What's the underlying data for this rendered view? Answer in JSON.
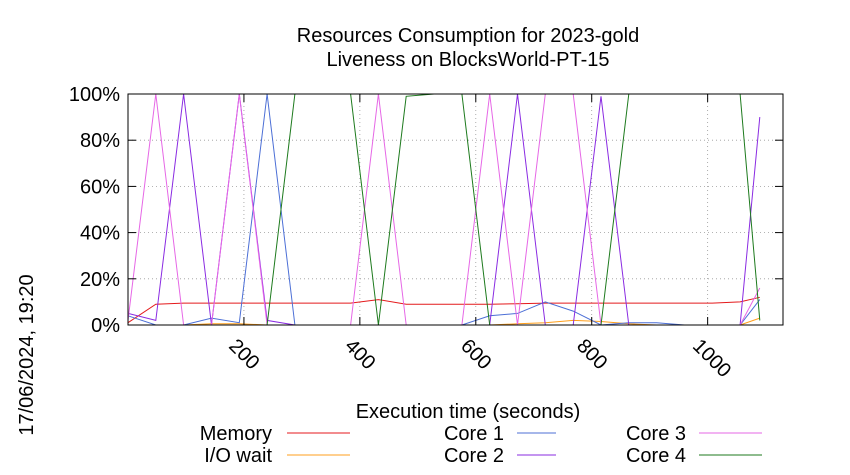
{
  "chart_data": {
    "type": "line",
    "title": "Resources Consumption for 2023-gold",
    "subtitle": "Liveness on BlocksWorld-PT-15",
    "xlabel": "Execution time (seconds)",
    "ylabel": "",
    "timestamp": "17/06/2024, 19:20",
    "xlim": [
      0,
      1130
    ],
    "ylim": [
      0,
      100
    ],
    "x_ticks": [
      200,
      400,
      600,
      800,
      1000
    ],
    "y_ticks": [
      0,
      20,
      40,
      60,
      80,
      100
    ],
    "y_tick_suffix": "%",
    "grid": true,
    "legend_position": "bottom",
    "series": [
      {
        "name": "Memory",
        "color": "#e41a1c",
        "points": [
          [
            0,
            1
          ],
          [
            48,
            9
          ],
          [
            96,
            9.5
          ],
          [
            144,
            9.5
          ],
          [
            192,
            9.5
          ],
          [
            240,
            9.5
          ],
          [
            288,
            9.5
          ],
          [
            336,
            9.5
          ],
          [
            384,
            9.5
          ],
          [
            432,
            11
          ],
          [
            480,
            9
          ],
          [
            528,
            9
          ],
          [
            576,
            9
          ],
          [
            624,
            9
          ],
          [
            672,
            9.2
          ],
          [
            720,
            9.5
          ],
          [
            768,
            9.5
          ],
          [
            816,
            9.5
          ],
          [
            864,
            9.5
          ],
          [
            912,
            9.5
          ],
          [
            960,
            9.5
          ],
          [
            1008,
            9.5
          ],
          [
            1056,
            10
          ],
          [
            1090,
            12
          ]
        ]
      },
      {
        "name": "I/O wait",
        "color": "#ff9f1c",
        "points": [
          [
            0,
            0
          ],
          [
            48,
            0
          ],
          [
            96,
            0
          ],
          [
            144,
            0.5
          ],
          [
            192,
            0.5
          ],
          [
            240,
            0
          ],
          [
            288,
            0
          ],
          [
            336,
            0
          ],
          [
            384,
            0
          ],
          [
            432,
            0
          ],
          [
            480,
            0
          ],
          [
            528,
            0
          ],
          [
            576,
            0
          ],
          [
            624,
            0
          ],
          [
            672,
            0.5
          ],
          [
            720,
            1
          ],
          [
            768,
            2
          ],
          [
            816,
            1.5
          ],
          [
            864,
            0.5
          ],
          [
            912,
            0
          ],
          [
            960,
            0
          ],
          [
            1008,
            0
          ],
          [
            1056,
            0
          ],
          [
            1090,
            3
          ]
        ]
      },
      {
        "name": "Core 1",
        "color": "#4c6fd6",
        "points": [
          [
            0,
            4
          ],
          [
            48,
            0
          ],
          [
            96,
            0
          ],
          [
            144,
            3
          ],
          [
            192,
            1
          ],
          [
            240,
            100
          ],
          [
            288,
            0
          ],
          [
            336,
            0
          ],
          [
            384,
            0
          ],
          [
            432,
            0
          ],
          [
            480,
            0
          ],
          [
            528,
            0
          ],
          [
            576,
            0
          ],
          [
            624,
            4
          ],
          [
            672,
            5
          ],
          [
            720,
            10
          ],
          [
            768,
            6
          ],
          [
            816,
            0
          ],
          [
            864,
            1
          ],
          [
            912,
            1
          ],
          [
            960,
            0
          ],
          [
            1008,
            0
          ],
          [
            1056,
            0
          ],
          [
            1090,
            11
          ]
        ]
      },
      {
        "name": "Core 2",
        "color": "#8a2be2",
        "points": [
          [
            0,
            5
          ],
          [
            48,
            2
          ],
          [
            96,
            100
          ],
          [
            144,
            0
          ],
          [
            192,
            100
          ],
          [
            240,
            2
          ],
          [
            288,
            0
          ],
          [
            336,
            0
          ],
          [
            384,
            0
          ],
          [
            432,
            0
          ],
          [
            480,
            0
          ],
          [
            528,
            0
          ],
          [
            576,
            0
          ],
          [
            624,
            0
          ],
          [
            672,
            100
          ],
          [
            720,
            0
          ],
          [
            768,
            0
          ],
          [
            816,
            99
          ],
          [
            864,
            0
          ],
          [
            912,
            0
          ],
          [
            960,
            0
          ],
          [
            1008,
            0
          ],
          [
            1056,
            0
          ],
          [
            1090,
            90
          ]
        ]
      },
      {
        "name": "Core 3",
        "color": "#e667e6",
        "points": [
          [
            0,
            2
          ],
          [
            48,
            100
          ],
          [
            96,
            0
          ],
          [
            144,
            0
          ],
          [
            192,
            100
          ],
          [
            240,
            0
          ],
          [
            288,
            0
          ],
          [
            336,
            0
          ],
          [
            384,
            0
          ],
          [
            432,
            100
          ],
          [
            480,
            0
          ],
          [
            528,
            0
          ],
          [
            576,
            0
          ],
          [
            624,
            100
          ],
          [
            672,
            0
          ],
          [
            720,
            100
          ],
          [
            768,
            100
          ],
          [
            816,
            0
          ],
          [
            864,
            0
          ],
          [
            912,
            0
          ],
          [
            960,
            0
          ],
          [
            1008,
            0
          ],
          [
            1056,
            0
          ],
          [
            1090,
            16
          ]
        ]
      },
      {
        "name": "Core 4",
        "color": "#1d7a1d",
        "points": [
          [
            0,
            0
          ],
          [
            48,
            0
          ],
          [
            96,
            0
          ],
          [
            144,
            0
          ],
          [
            192,
            0
          ],
          [
            240,
            0
          ],
          [
            288,
            100
          ],
          [
            336,
            100
          ],
          [
            384,
            100
          ],
          [
            432,
            0
          ],
          [
            480,
            99
          ],
          [
            528,
            100
          ],
          [
            576,
            100
          ],
          [
            624,
            0
          ],
          [
            672,
            0
          ],
          [
            720,
            0
          ],
          [
            768,
            0
          ],
          [
            816,
            0
          ],
          [
            864,
            100
          ],
          [
            912,
            100
          ],
          [
            960,
            100
          ],
          [
            1008,
            100
          ],
          [
            1056,
            100
          ],
          [
            1090,
            2
          ]
        ]
      }
    ]
  }
}
